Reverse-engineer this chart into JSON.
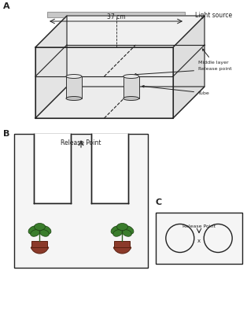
{
  "bg_color": "#ffffff",
  "label_A": "A",
  "label_B": "B",
  "label_C": "C",
  "light_source_text": "Light source",
  "distance_text": "37 cm",
  "middle_layer_text": "Middle layer",
  "release_point_text_A": "Release point",
  "tube_text": "Tube",
  "release_point_text_B": "Release Point",
  "release_point_text_C": "Release Point",
  "box_color": "#d3d3d3",
  "line_color": "#222222",
  "plant_green": "#3a7d2c",
  "plant_pot": "#8b3a2a",
  "light_bar_color": "#c8c8c8"
}
